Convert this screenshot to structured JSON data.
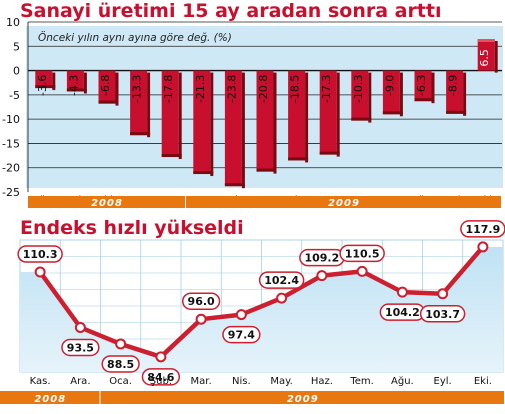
{
  "colors": {
    "title": "#c8102e",
    "bar_front": "#c8102e",
    "bar_side": "#7a0a12",
    "bar_top": "#e8505a",
    "line": "#cc1f2f",
    "area_top": "#bfe2f4",
    "area_bottom": "#e6f3fa",
    "year_band": "#e8770f",
    "panel_bg": "#cfe8f5"
  },
  "chart_data": [
    {
      "type": "bar",
      "title": "Sanayi üretimi 15 ay aradan sonra arttı",
      "subtitle": "Önceki yılın aynı ayına göre değ. (%)",
      "categories": [
        "Ağu.",
        "Eyl.",
        "Eki.",
        "Kas.",
        "Ara.",
        "Oca.",
        "Şub.",
        "Mar.",
        "Nis.",
        "May.",
        "Haz.",
        "Tem.",
        "Ağu.",
        "Eyl.",
        "Eki."
      ],
      "values": [
        -3.6,
        -4.3,
        -6.8,
        -13.3,
        -17.8,
        -21.3,
        -23.8,
        -20.8,
        -18.5,
        -17.3,
        -10.3,
        -9.0,
        -6.3,
        -8.9,
        6.5
      ],
      "value_labels": [
        "-3.6",
        "-4.3",
        "-6.8",
        "-13.3",
        "-17.8",
        "-21.3",
        "-23.8",
        "-20.8",
        "-18.5",
        "-17.3",
        "-10.3",
        "-9.0",
        "-6.3",
        "-8.9",
        "6.5"
      ],
      "yticks": [
        "10",
        "5",
        "0",
        "-5",
        "-10",
        "-15",
        "-20",
        "-25"
      ],
      "ylim": [
        -25,
        10
      ],
      "years": [
        {
          "label": "2008",
          "from": 0,
          "to": 4
        },
        {
          "label": "2009",
          "from": 5,
          "to": 14
        }
      ]
    },
    {
      "type": "line",
      "title": "Endeks hızlı yükseldi",
      "categories": [
        "Kas.",
        "Ara.",
        "Oca.",
        "Şub.",
        "Mar.",
        "Nis.",
        "May.",
        "Haz.",
        "Tem.",
        "Ağu.",
        "Eyl.",
        "Eki."
      ],
      "values": [
        110.3,
        93.5,
        88.5,
        84.6,
        96.0,
        97.4,
        102.4,
        109.2,
        110.5,
        104.2,
        103.7,
        117.9
      ],
      "value_labels": [
        "110.3",
        "93.5",
        "88.5",
        "84.6",
        "96.0",
        "97.4",
        "102.4",
        "109.2",
        "110.5",
        "104.2",
        "103.7",
        "117.9"
      ],
      "ylim": [
        80,
        120
      ],
      "years": [
        {
          "label": "2008",
          "from": 0,
          "to": 1
        },
        {
          "label": "2009",
          "from": 2,
          "to": 11
        }
      ]
    }
  ]
}
